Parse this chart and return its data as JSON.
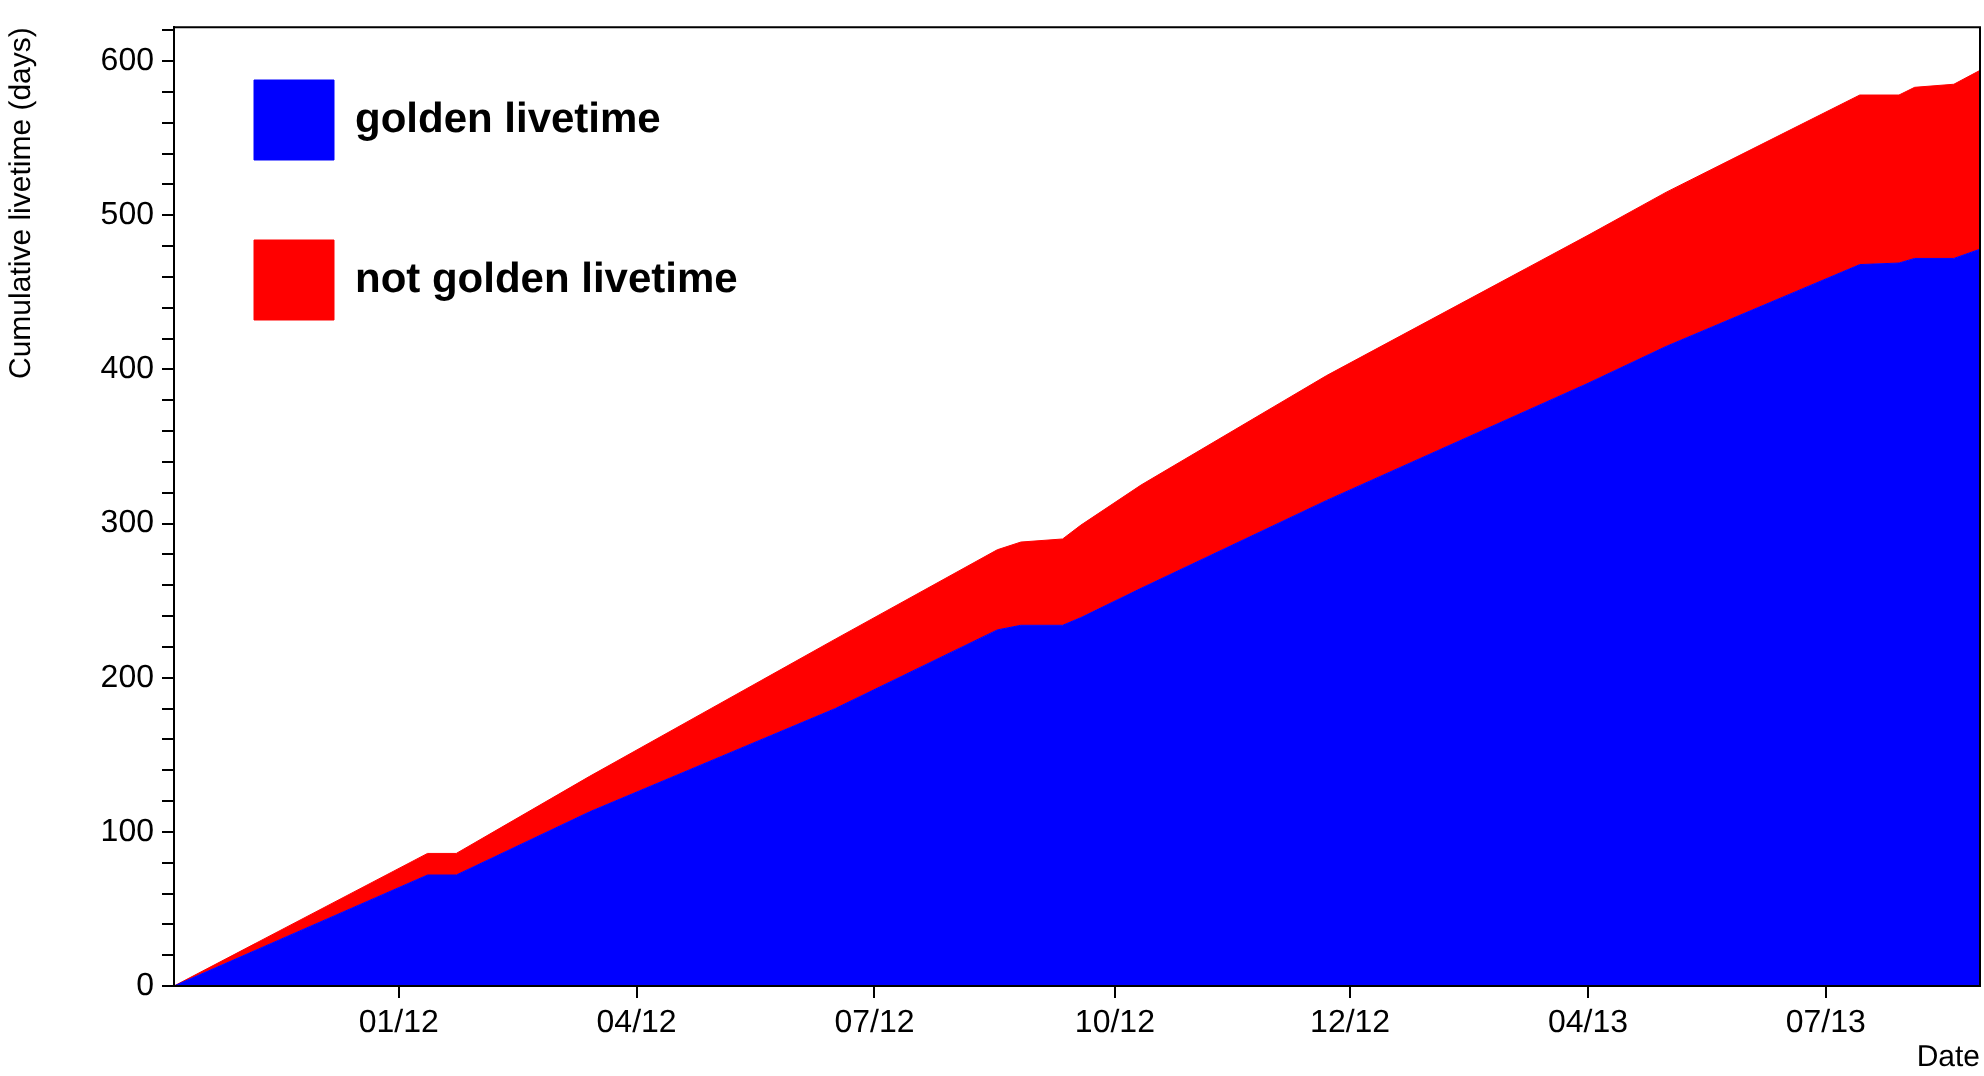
{
  "chart_data": {
    "type": "area",
    "stacked": true,
    "xlabel": "Date",
    "ylabel": "Cumulative livetime (days)",
    "x": [
      "2011-10-07",
      "2012-01-12",
      "2012-01-23",
      "2012-03-14",
      "2012-06-16",
      "2012-08-17",
      "2012-08-26",
      "2012-09-11",
      "2012-09-18",
      "2012-10-11",
      "2012-12-21",
      "2013-03-31",
      "2013-04-30",
      "2013-07-13",
      "2013-07-28",
      "2013-08-03",
      "2013-08-18",
      "2013-08-28"
    ],
    "series": [
      {
        "name": "golden livetime",
        "color": "#0000ff",
        "values": [
          0,
          72,
          72,
          113,
          180,
          231,
          234,
          234,
          239,
          258,
          315,
          391,
          415,
          468,
          469,
          472,
          472,
          478
        ]
      },
      {
        "name": "not golden livetime",
        "color": "#ff0000",
        "values": [
          0,
          14,
          14,
          23,
          45,
          52,
          54,
          56,
          60,
          67,
          81,
          96,
          100,
          110,
          109,
          111,
          113,
          116
        ]
      }
    ],
    "xlim": [
      "2011-10-07",
      "2013-08-28"
    ],
    "xticks": [
      {
        "value": "2012-01-01",
        "label": "01/12"
      },
      {
        "value": "2012-04-01",
        "label": "04/12"
      },
      {
        "value": "2012-07-01",
        "label": "07/12"
      },
      {
        "value": "2012-10-01",
        "label": "10/12"
      },
      {
        "value": "2012-12-30",
        "label": "12/12"
      },
      {
        "value": "2013-03-31",
        "label": "04/13"
      },
      {
        "value": "2013-06-30",
        "label": "07/13"
      }
    ],
    "ylim": [
      0,
      622
    ],
    "yticks": [
      0,
      {
        "value": 20,
        "label": null
      },
      {
        "value": 40,
        "label": null
      },
      {
        "value": 60,
        "label": null
      },
      {
        "value": 80,
        "label": null
      },
      100,
      {
        "value": 120,
        "label": null
      },
      {
        "value": 140,
        "label": null
      },
      {
        "value": 160,
        "label": null
      },
      {
        "value": 180,
        "label": null
      },
      200,
      {
        "value": 220,
        "label": null
      },
      {
        "value": 240,
        "label": null
      },
      {
        "value": 260,
        "label": null
      },
      {
        "value": 280,
        "label": null
      },
      300,
      {
        "value": 320,
        "label": null
      },
      {
        "value": 340,
        "label": null
      },
      {
        "value": 360,
        "label": null
      },
      {
        "value": 380,
        "label": null
      },
      400,
      {
        "value": 420,
        "label": null
      },
      {
        "value": 440,
        "label": null
      },
      {
        "value": 460,
        "label": null
      },
      {
        "value": 480,
        "label": null
      },
      500,
      {
        "value": 520,
        "label": null
      },
      {
        "value": 540,
        "label": null
      },
      {
        "value": 560,
        "label": null
      },
      {
        "value": 580,
        "label": null
      },
      600,
      {
        "value": 620,
        "label": null
      }
    ],
    "grid": false,
    "legend": "top left"
  }
}
